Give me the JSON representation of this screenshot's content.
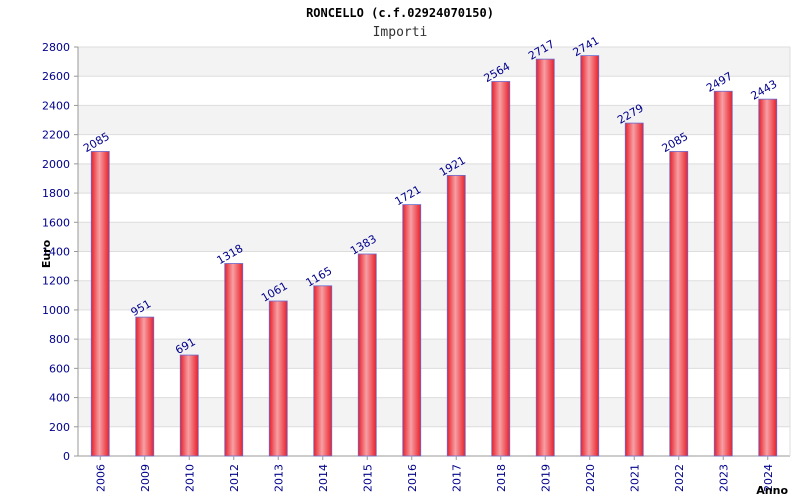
{
  "chart_data": {
    "type": "bar",
    "title": "RONCELLO (c.f.02924070150)",
    "subtitle": "Importi",
    "xlabel": "Anno",
    "ylabel": "Euro",
    "categories": [
      "2006",
      "2009",
      "2010",
      "2012",
      "2013",
      "2014",
      "2015",
      "2016",
      "2017",
      "2018",
      "2019",
      "2020",
      "2021",
      "2022",
      "2023",
      "2024"
    ],
    "values": [
      2085,
      951,
      691,
      1318,
      1061,
      1165,
      1383,
      1721,
      1921,
      2564,
      2717,
      2741,
      2279,
      2085,
      2497,
      2443
    ],
    "value_labels": [
      "2085",
      "951",
      "691",
      "1318",
      "1061",
      "1165",
      "1383",
      "1721",
      "1921",
      "2564",
      "2717",
      "2741",
      "2279",
      "2085",
      "2497",
      "2443"
    ],
    "ylim": [
      0,
      2800
    ],
    "yticks": [
      0,
      200,
      400,
      600,
      800,
      1000,
      1200,
      1400,
      1600,
      1800,
      2000,
      2200,
      2400,
      2600,
      2800
    ],
    "ytick_labels": [
      "0",
      "200",
      "400",
      "600",
      "800",
      "1000",
      "1200",
      "1400",
      "1600",
      "1800",
      "2000",
      "2200",
      "2400",
      "2600",
      "2800"
    ],
    "grid": true,
    "colors": {
      "bar": "#e8202a",
      "bar_highlight": "#f7a0a4",
      "bar_edge": "#6a6ad0",
      "tick_label": "#00008b",
      "value_label": "#00008b",
      "band_light": "#f3f3f3",
      "band_white": "#ffffff",
      "grid": "#dddddd",
      "axis": "#999999"
    }
  }
}
